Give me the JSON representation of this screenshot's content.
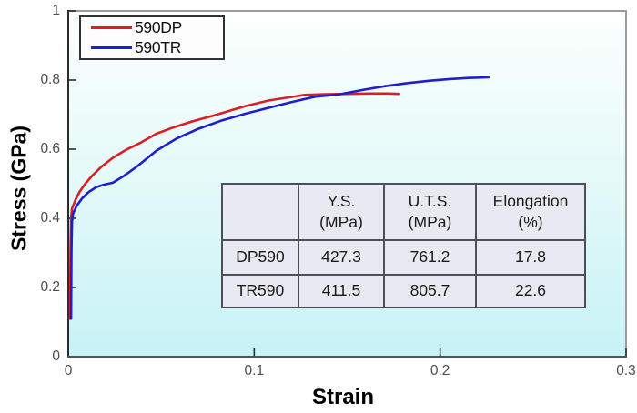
{
  "chart_data": {
    "type": "line",
    "title": "",
    "xlabel": "Strain",
    "ylabel": "Stress (GPa)",
    "xlim": [
      0,
      0.3
    ],
    "ylim": [
      0,
      1
    ],
    "grid": false,
    "legend_position": "top-left",
    "x_ticks": {
      "values": [
        0,
        0.1,
        0.2,
        0.3
      ],
      "labels": [
        "0",
        "0.1",
        "0.2",
        "0.3"
      ]
    },
    "y_ticks": {
      "values": [
        0,
        0.2,
        0.4,
        0.6,
        0.8,
        1
      ],
      "labels": [
        "0",
        "0.2",
        "0.4",
        "0.6",
        "0.8",
        "1"
      ]
    },
    "plot_bg_gradient": {
      "top": "#fcfffe",
      "mid": "#e6faf9",
      "bottom": "#c7f2f6"
    },
    "axis_colors": {
      "left_bottom": "#2b2b2b",
      "top_right": "#9a9aa0",
      "tick_label": "#4d4d4d"
    },
    "series": [
      {
        "name": "590DP",
        "color": "#d91e26",
        "points": [
          [
            0.001,
            0.11
          ],
          [
            0.0012,
            0.3
          ],
          [
            0.0015,
            0.4
          ],
          [
            0.002,
            0.428
          ],
          [
            0.004,
            0.455
          ],
          [
            0.006,
            0.476
          ],
          [
            0.009,
            0.499
          ],
          [
            0.013,
            0.524
          ],
          [
            0.018,
            0.55
          ],
          [
            0.024,
            0.575
          ],
          [
            0.031,
            0.598
          ],
          [
            0.039,
            0.619
          ],
          [
            0.0475,
            0.645
          ],
          [
            0.057,
            0.664
          ],
          [
            0.067,
            0.681
          ],
          [
            0.078,
            0.697
          ],
          [
            0.0955,
            0.725
          ],
          [
            0.108,
            0.741
          ],
          [
            0.12,
            0.751
          ],
          [
            0.127,
            0.757
          ],
          [
            0.138,
            0.759
          ],
          [
            0.15,
            0.76
          ],
          [
            0.162,
            0.761
          ],
          [
            0.172,
            0.761
          ],
          [
            0.178,
            0.76
          ]
        ]
      },
      {
        "name": "590TR",
        "color": "#1e1ecc",
        "points": [
          [
            0.0015,
            0.11
          ],
          [
            0.0017,
            0.3
          ],
          [
            0.002,
            0.39
          ],
          [
            0.0025,
            0.412
          ],
          [
            0.0045,
            0.436
          ],
          [
            0.0075,
            0.458
          ],
          [
            0.011,
            0.476
          ],
          [
            0.015,
            0.49
          ],
          [
            0.019,
            0.497
          ],
          [
            0.024,
            0.503
          ],
          [
            0.03,
            0.523
          ],
          [
            0.037,
            0.55
          ],
          [
            0.0475,
            0.596
          ],
          [
            0.058,
            0.63
          ],
          [
            0.07,
            0.659
          ],
          [
            0.082,
            0.682
          ],
          [
            0.0955,
            0.703
          ],
          [
            0.108,
            0.72
          ],
          [
            0.12,
            0.736
          ],
          [
            0.133,
            0.752
          ],
          [
            0.145,
            0.758
          ],
          [
            0.158,
            0.771
          ],
          [
            0.17,
            0.782
          ],
          [
            0.182,
            0.791
          ],
          [
            0.194,
            0.798
          ],
          [
            0.205,
            0.803
          ],
          [
            0.215,
            0.806
          ],
          [
            0.226,
            0.808
          ]
        ]
      }
    ]
  },
  "table": {
    "headers": [
      "",
      "Y.S.\n(MPa)",
      "U.T.S.\n(MPa)",
      "Elongation\n(%)"
    ],
    "rows": [
      {
        "label": "DP590",
        "ys": "427.3",
        "uts": "761.2",
        "elongation": "17.8"
      },
      {
        "label": "TR590",
        "ys": "411.5",
        "uts": "805.7",
        "elongation": "22.6"
      }
    ]
  }
}
